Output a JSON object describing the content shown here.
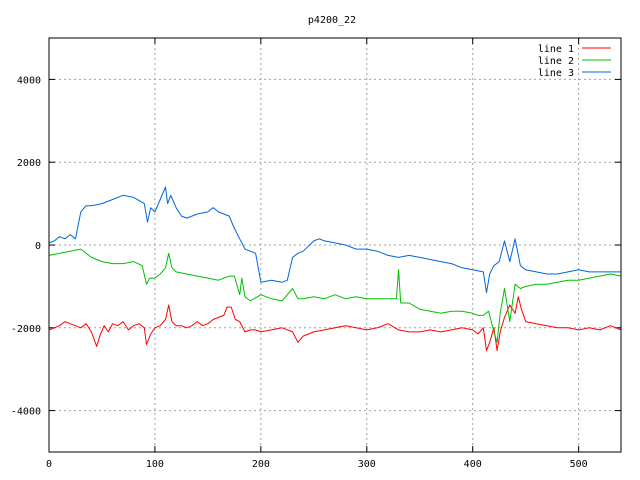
{
  "chart_data": {
    "type": "line",
    "title": "p4200_22",
    "xlabel": "",
    "ylabel": "",
    "xlim": [
      0,
      540
    ],
    "ylim": [
      -5000,
      5000
    ],
    "x_ticks": [
      0,
      100,
      200,
      300,
      400,
      500
    ],
    "y_ticks": [
      -4000,
      -2000,
      0,
      2000,
      4000
    ],
    "grid": true,
    "legend_position": "top-right",
    "series": [
      {
        "name": "line 1",
        "color": "#ff0000",
        "x": [
          0,
          5,
          10,
          15,
          20,
          25,
          30,
          35,
          40,
          45,
          48,
          52,
          56,
          60,
          65,
          70,
          75,
          80,
          85,
          90,
          92,
          96,
          100,
          105,
          110,
          113,
          116,
          120,
          125,
          130,
          135,
          140,
          145,
          150,
          155,
          160,
          165,
          168,
          172,
          176,
          180,
          185,
          190,
          195,
          200,
          210,
          220,
          230,
          235,
          240,
          250,
          260,
          270,
          280,
          290,
          300,
          310,
          320,
          330,
          340,
          350,
          360,
          370,
          380,
          390,
          400,
          405,
          410,
          413,
          416,
          420,
          423,
          426,
          430,
          435,
          440,
          443,
          446,
          450,
          460,
          470,
          480,
          490,
          500,
          510,
          520,
          530,
          540
        ],
        "y": [
          -2050,
          -2000,
          -1950,
          -1850,
          -1900,
          -1950,
          -2000,
          -1900,
          -2100,
          -2450,
          -2200,
          -1950,
          -2100,
          -1900,
          -1950,
          -1850,
          -2050,
          -1950,
          -1900,
          -2000,
          -2400,
          -2150,
          -2000,
          -1950,
          -1800,
          -1450,
          -1850,
          -1950,
          -1950,
          -2000,
          -1950,
          -1850,
          -1950,
          -1900,
          -1800,
          -1750,
          -1700,
          -1500,
          -1500,
          -1800,
          -1850,
          -2100,
          -2050,
          -2050,
          -2100,
          -2050,
          -2000,
          -2100,
          -2350,
          -2200,
          -2100,
          -2050,
          -2000,
          -1950,
          -2000,
          -2050,
          -2000,
          -1900,
          -2050,
          -2100,
          -2100,
          -2050,
          -2100,
          -2050,
          -2000,
          -2050,
          -2150,
          -2000,
          -2550,
          -2350,
          -2000,
          -2550,
          -2100,
          -1750,
          -1450,
          -1650,
          -1250,
          -1550,
          -1850,
          -1900,
          -1950,
          -2000,
          -2000,
          -2050,
          -2000,
          -2050,
          -1950,
          -2050
        ]
      },
      {
        "name": "line 2",
        "color": "#00c000",
        "x": [
          0,
          10,
          20,
          30,
          40,
          50,
          60,
          70,
          80,
          88,
          92,
          95,
          100,
          105,
          110,
          113,
          116,
          120,
          130,
          140,
          150,
          160,
          170,
          175,
          180,
          182,
          185,
          190,
          200,
          210,
          220,
          230,
          235,
          240,
          250,
          260,
          270,
          280,
          290,
          300,
          310,
          320,
          328,
          330,
          332,
          340,
          350,
          360,
          370,
          380,
          390,
          400,
          405,
          410,
          415,
          420,
          423,
          426,
          430,
          435,
          440,
          445,
          450,
          460,
          470,
          480,
          490,
          500,
          510,
          520,
          530,
          540
        ],
        "y": [
          -250,
          -200,
          -150,
          -100,
          -300,
          -400,
          -450,
          -450,
          -400,
          -500,
          -950,
          -800,
          -800,
          -700,
          -550,
          -200,
          -550,
          -650,
          -700,
          -750,
          -800,
          -850,
          -750,
          -750,
          -1200,
          -800,
          -1250,
          -1350,
          -1200,
          -1300,
          -1350,
          -1050,
          -1300,
          -1300,
          -1250,
          -1300,
          -1200,
          -1300,
          -1250,
          -1300,
          -1300,
          -1300,
          -1300,
          -600,
          -1400,
          -1400,
          -1550,
          -1600,
          -1650,
          -1600,
          -1600,
          -1650,
          -1700,
          -1700,
          -1600,
          -2100,
          -2350,
          -1650,
          -1050,
          -1850,
          -950,
          -1050,
          -1000,
          -950,
          -950,
          -900,
          -850,
          -850,
          -800,
          -750,
          -700,
          -750
        ]
      },
      {
        "name": "line 3",
        "color": "#0066dd",
        "x": [
          0,
          5,
          10,
          15,
          20,
          25,
          30,
          35,
          40,
          50,
          60,
          70,
          80,
          90,
          93,
          96,
          100,
          105,
          110,
          112,
          115,
          120,
          125,
          130,
          140,
          150,
          155,
          160,
          165,
          170,
          175,
          180,
          185,
          190,
          195,
          200,
          210,
          220,
          225,
          230,
          235,
          240,
          250,
          255,
          260,
          270,
          280,
          290,
          300,
          310,
          320,
          330,
          340,
          350,
          360,
          370,
          380,
          390,
          400,
          410,
          413,
          416,
          420,
          425,
          430,
          435,
          440,
          445,
          450,
          460,
          470,
          480,
          490,
          500,
          510,
          520,
          530,
          540
        ],
        "y": [
          50,
          100,
          200,
          150,
          250,
          150,
          800,
          950,
          950,
          1000,
          1100,
          1200,
          1150,
          1000,
          550,
          900,
          800,
          1100,
          1400,
          1000,
          1200,
          900,
          700,
          650,
          750,
          800,
          900,
          800,
          750,
          700,
          400,
          150,
          -100,
          -150,
          -200,
          -900,
          -850,
          -900,
          -850,
          -300,
          -200,
          -150,
          100,
          150,
          100,
          50,
          0,
          -100,
          -100,
          -150,
          -250,
          -300,
          -250,
          -300,
          -350,
          -400,
          -450,
          -550,
          -600,
          -650,
          -1150,
          -700,
          -500,
          -400,
          100,
          -400,
          150,
          -500,
          -600,
          -650,
          -700,
          -700,
          -650,
          -600,
          -650,
          -650,
          -650,
          -650
        ]
      }
    ]
  }
}
